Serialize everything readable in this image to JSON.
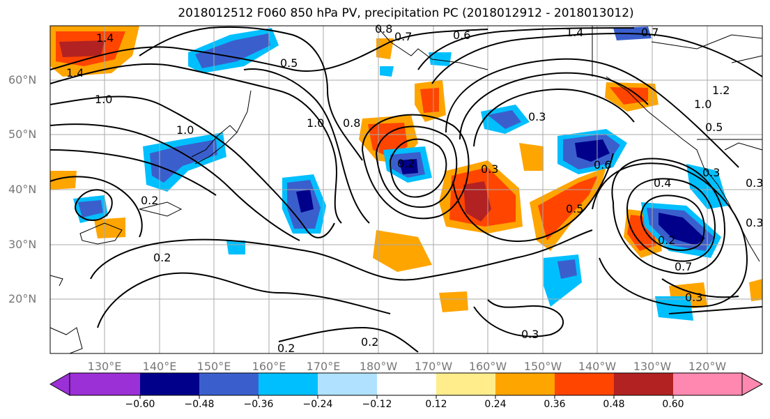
{
  "title": "2018012512 F060 850 hPa PV, precipitation PC (2018012912 - 2018013012)",
  "lat_labels": [
    "60°N",
    "50°N",
    "40°N",
    "30°N",
    "20°N"
  ],
  "lon_labels": [
    "130°E",
    "140°E",
    "150°E",
    "160°E",
    "170°E",
    "180°W",
    "170°W",
    "160°W",
    "150°W",
    "140°W",
    "130°W",
    "120°W"
  ],
  "contour_labels": [
    "1.4",
    "0.8",
    "0.7",
    "0.6",
    "1.4",
    "0.7",
    "1.4",
    "1.0",
    "0.5",
    "1.0",
    "0.8",
    "0.3",
    "1.0",
    "1.2",
    "1.0",
    "0.5",
    "0.3",
    "0.4",
    "0.5",
    "0.2",
    "0.3",
    "0.6",
    "0.2",
    "0.3",
    "0.2",
    "0.2",
    "0.3",
    "0.3",
    "0.2",
    "0.2",
    "0.3",
    "0.7"
  ],
  "colorbar": {
    "ticks": [
      "−0.60",
      "−0.48",
      "−0.36",
      "−0.24",
      "−0.12",
      "0.12",
      "0.24",
      "0.36",
      "0.48",
      "0.60"
    ],
    "colors": [
      "#9b30d6",
      "#00008b",
      "#3a5fcd",
      "#00bfff",
      "#b0e2ff",
      "#ffffff",
      "#ffec8b",
      "#ffa500",
      "#ff4500",
      "#b22222",
      "#ff88b0"
    ]
  },
  "shading_colors": {
    "neg_light": "#00bfff",
    "neg_mid": "#3a5fcd",
    "neg_dark": "#00008b",
    "pos_light": "#ffa500",
    "pos_mid": "#ff4500",
    "pos_dark": "#b22222",
    "pos_pale": "#ffec8b"
  }
}
